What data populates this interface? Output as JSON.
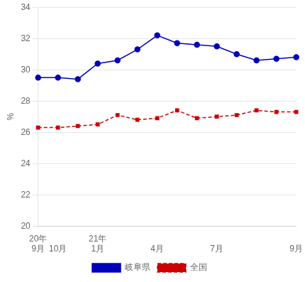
{
  "chart_data": {
    "type": "line",
    "y_label": "%",
    "categories": [
      [
        "20年",
        "9月"
      ],
      "10月",
      null,
      [
        "21年",
        "1月"
      ],
      null,
      null,
      "4月",
      null,
      null,
      "7月",
      null,
      null,
      null,
      "9月"
    ],
    "series": [
      {
        "name": "岐阜県",
        "color": "#0000bb",
        "marker": "circle",
        "line_style": "solid",
        "values": [
          29.5,
          29.5,
          29.4,
          30.4,
          30.6,
          31.3,
          32.2,
          31.7,
          31.6,
          31.5,
          31.0,
          30.6,
          30.7,
          30.8
        ]
      },
      {
        "name": "全国",
        "color": "#cc0000",
        "marker": "square",
        "line_style": "dashed",
        "values": [
          26.3,
          26.3,
          26.4,
          26.5,
          27.1,
          26.8,
          26.9,
          27.4,
          26.9,
          27.0,
          27.1,
          27.4,
          27.3,
          27.3
        ]
      }
    ],
    "ylim": [
      20,
      34
    ],
    "yticks": [
      20,
      22,
      24,
      26,
      28,
      30,
      32,
      34
    ],
    "grid": "y",
    "legend": "bottom"
  }
}
